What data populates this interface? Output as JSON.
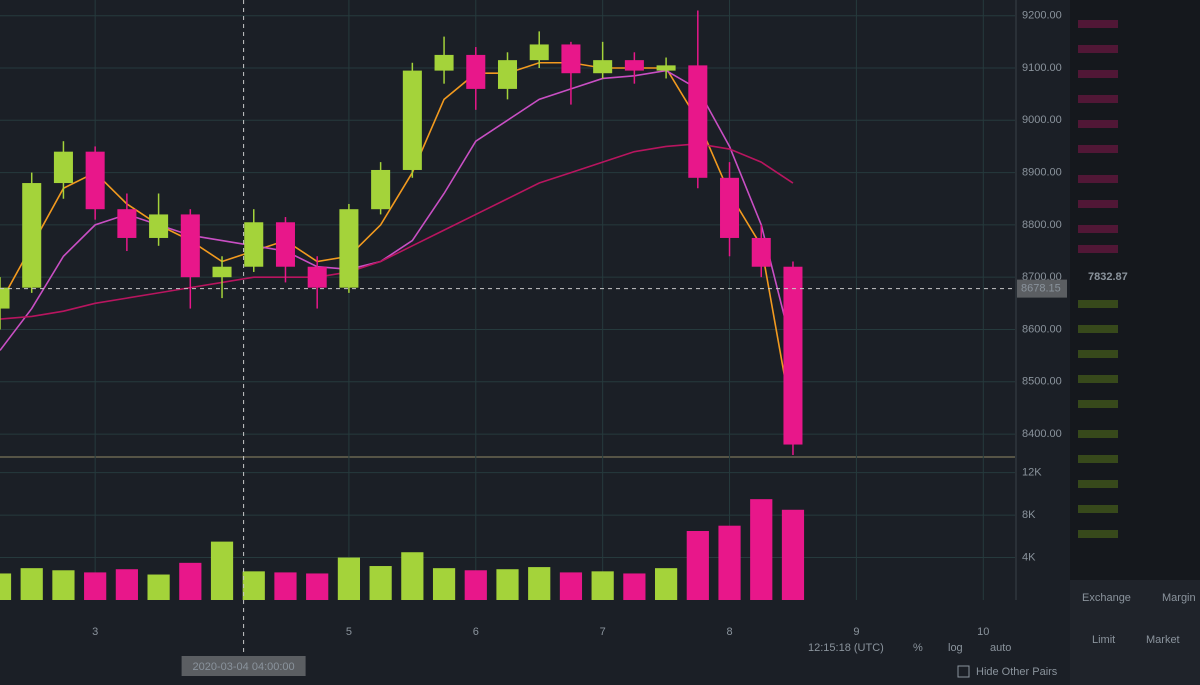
{
  "chart_data": {
    "type": "candlestick",
    "x": [
      2.25,
      2.5,
      2.75,
      3.0,
      3.25,
      3.5,
      3.75,
      4.0,
      4.25,
      4.5,
      4.75,
      5.0,
      5.25,
      5.5,
      5.75,
      6.0,
      6.25,
      6.5,
      6.75,
      7.0,
      7.25,
      7.5,
      7.75,
      8.0,
      8.25,
      8.5
    ],
    "open": [
      8640,
      8680,
      8880,
      8940,
      8830,
      8775,
      8820,
      8700,
      8720,
      8805,
      8720,
      8680,
      8830,
      8905,
      9095,
      9125,
      9060,
      9115,
      9145,
      9090,
      9115,
      9095,
      9105,
      8890,
      8775,
      8720
    ],
    "high": [
      8700,
      8900,
      8960,
      8950,
      8860,
      8860,
      8830,
      8740,
      8830,
      8815,
      8740,
      8840,
      8920,
      9110,
      9160,
      9140,
      9130,
      9170,
      9150,
      9150,
      9130,
      9120,
      9210,
      8920,
      8800,
      8730
    ],
    "low": [
      8600,
      8670,
      8850,
      8810,
      8750,
      8760,
      8640,
      8660,
      8710,
      8690,
      8640,
      8670,
      8820,
      8890,
      9070,
      9020,
      9040,
      9100,
      9030,
      9080,
      9070,
      9080,
      8870,
      8740,
      8700,
      8360
    ],
    "close": [
      8680,
      8880,
      8940,
      8830,
      8775,
      8820,
      8700,
      8720,
      8805,
      8720,
      8680,
      8830,
      8905,
      9095,
      9125,
      9060,
      9115,
      9145,
      9090,
      9115,
      9095,
      9105,
      8890,
      8775,
      8720,
      8380
    ],
    "up_color": "#a4d33a",
    "down_color": "#e8178a",
    "lines": [
      {
        "color": "#f29a1f",
        "values": [
          8650,
          8760,
          8870,
          8900,
          8840,
          8800,
          8770,
          8730,
          8750,
          8770,
          8730,
          8740,
          8800,
          8900,
          9040,
          9090,
          9090,
          9110,
          9110,
          9100,
          9100,
          9100,
          9000,
          8860,
          8760,
          8420
        ]
      },
      {
        "color": "#c94fc4",
        "values": [
          8560,
          8640,
          8740,
          8800,
          8820,
          8800,
          8780,
          8770,
          8760,
          8750,
          8720,
          8715,
          8730,
          8770,
          8860,
          8960,
          9000,
          9040,
          9060,
          9080,
          9085,
          9095,
          9060,
          8950,
          8800,
          8560
        ]
      },
      {
        "color": "#b8155f",
        "values": [
          8620,
          8625,
          8635,
          8650,
          8660,
          8670,
          8680,
          8690,
          8700,
          8700,
          8700,
          8710,
          8730,
          8760,
          8790,
          8820,
          8850,
          8880,
          8900,
          8920,
          8940,
          8950,
          8955,
          8945,
          8920,
          8880
        ]
      }
    ],
    "xlim": [
      2.25,
      10.25
    ],
    "xticks": [
      3,
      5,
      6,
      7,
      8,
      9,
      10
    ],
    "ylim": [
      8360,
      9230
    ],
    "yticks": [
      {
        "value": 8400,
        "label": "8400.00"
      },
      {
        "value": 8500,
        "label": "8500.00"
      },
      {
        "value": 8600,
        "label": "8600.00"
      },
      {
        "value": 8700,
        "label": "8700.00"
      },
      {
        "value": 8800,
        "label": "8800.00"
      },
      {
        "value": 8900,
        "label": "8900.00"
      },
      {
        "value": 9000,
        "label": "9000.00"
      },
      {
        "value": 9100,
        "label": "9100.00"
      },
      {
        "value": 9200,
        "label": "9200.00"
      }
    ],
    "grid": true,
    "volume": {
      "values": [
        2500,
        3000,
        2800,
        2600,
        2900,
        2400,
        3500,
        5500,
        2700,
        2600,
        2500,
        4000,
        3200,
        4500,
        3000,
        2800,
        2900,
        3100,
        2600,
        2700,
        2500,
        3000,
        6500,
        7000,
        9500,
        8500
      ],
      "ylim": [
        0,
        13000
      ],
      "yticks": [
        {
          "value": 4000,
          "label": "4K"
        },
        {
          "value": 8000,
          "label": "8K"
        },
        {
          "value": 12000,
          "label": "12K"
        }
      ]
    },
    "crosshair": {
      "x": 4.17,
      "x_label": "2020-03-04 04:00:00",
      "y": 8678.15
    },
    "last_price": 7832.87
  },
  "toolbar": {
    "time": "12:15:18 (UTC)",
    "percent": "%",
    "log": "log",
    "auto": "auto",
    "hide_pairs": "Hide Other Pairs"
  },
  "order_panel": {
    "tabs": [
      "Exchange",
      "Margin"
    ],
    "order_types": [
      "Limit",
      "Market"
    ]
  }
}
